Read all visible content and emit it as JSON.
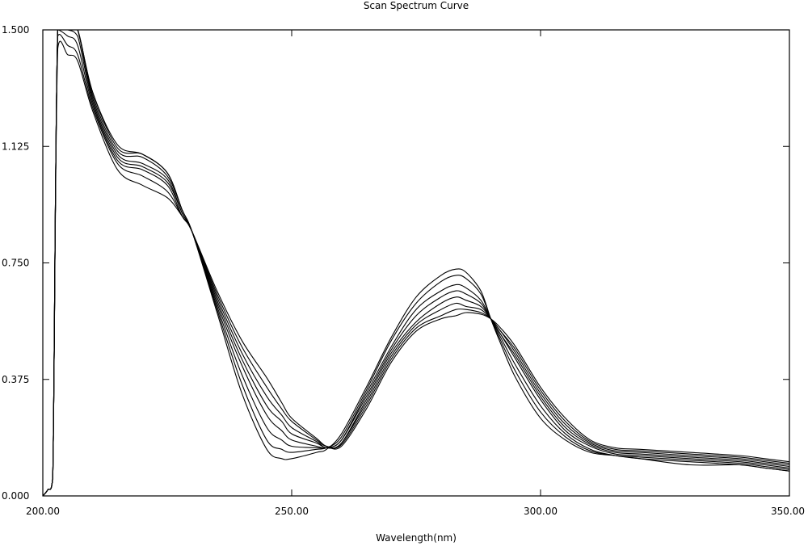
{
  "chart_data": {
    "type": "line",
    "title": "Scan Spectrum Curve",
    "xlabel": "Wavelength(nm)",
    "ylabel": "",
    "xlim": [
      200,
      350
    ],
    "ylim": [
      0,
      1.5
    ],
    "grid": false,
    "x_ticks": [
      "200.00",
      "250.00",
      "300.00",
      "350.00"
    ],
    "y_ticks": [
      "0.000",
      "0.375",
      "0.750",
      "1.125",
      "1.500"
    ],
    "x_tick_values": [
      200,
      250,
      300,
      350
    ],
    "y_tick_values": [
      0,
      0.375,
      0.75,
      1.125,
      1.5
    ],
    "x": [
      200,
      201,
      202,
      203,
      205,
      207,
      210,
      215,
      220,
      225,
      228,
      230,
      235,
      240,
      245,
      248,
      250,
      255,
      257,
      260,
      265,
      270,
      275,
      280,
      283,
      285,
      288,
      290,
      292,
      295,
      300,
      305,
      310,
      315,
      320,
      330,
      340,
      345,
      350
    ],
    "series": [
      {
        "values": [
          0.0,
          0.02,
          0.06,
          1.6,
          1.62,
          1.6,
          1.3,
          1.13,
          1.1,
          1.04,
          0.92,
          0.85,
          0.59,
          0.33,
          0.15,
          0.12,
          0.12,
          0.14,
          0.15,
          0.2,
          0.35,
          0.51,
          0.64,
          0.71,
          0.73,
          0.72,
          0.66,
          0.57,
          0.49,
          0.38,
          0.25,
          0.18,
          0.14,
          0.13,
          0.12,
          0.1,
          0.1,
          0.09,
          0.08
        ]
      },
      {
        "values": [
          0.0,
          0.02,
          0.06,
          1.6,
          1.6,
          1.56,
          1.3,
          1.12,
          1.1,
          1.04,
          0.92,
          0.85,
          0.6,
          0.36,
          0.18,
          0.15,
          0.14,
          0.15,
          0.155,
          0.19,
          0.34,
          0.5,
          0.62,
          0.69,
          0.71,
          0.7,
          0.65,
          0.57,
          0.5,
          0.4,
          0.27,
          0.19,
          0.145,
          0.13,
          0.12,
          0.11,
          0.1,
          0.09,
          0.08
        ]
      },
      {
        "values": [
          0.0,
          0.02,
          0.06,
          1.6,
          1.58,
          1.52,
          1.29,
          1.11,
          1.09,
          1.03,
          0.92,
          0.85,
          0.61,
          0.39,
          0.22,
          0.18,
          0.16,
          0.155,
          0.155,
          0.18,
          0.33,
          0.48,
          0.6,
          0.66,
          0.68,
          0.67,
          0.63,
          0.57,
          0.51,
          0.42,
          0.29,
          0.2,
          0.15,
          0.13,
          0.125,
          0.115,
          0.105,
          0.095,
          0.085
        ]
      },
      {
        "values": [
          0.0,
          0.02,
          0.06,
          1.58,
          1.56,
          1.5,
          1.28,
          1.1,
          1.07,
          1.02,
          0.91,
          0.85,
          0.62,
          0.42,
          0.26,
          0.21,
          0.18,
          0.16,
          0.155,
          0.18,
          0.32,
          0.47,
          0.58,
          0.64,
          0.66,
          0.65,
          0.62,
          0.57,
          0.52,
          0.44,
          0.31,
          0.21,
          0.16,
          0.135,
          0.13,
          0.12,
          0.11,
          0.1,
          0.09
        ]
      },
      {
        "values": [
          0.0,
          0.02,
          0.06,
          1.55,
          1.52,
          1.48,
          1.27,
          1.09,
          1.06,
          1.01,
          0.91,
          0.85,
          0.63,
          0.44,
          0.29,
          0.24,
          0.2,
          0.17,
          0.155,
          0.17,
          0.31,
          0.46,
          0.56,
          0.62,
          0.64,
          0.63,
          0.61,
          0.57,
          0.52,
          0.45,
          0.32,
          0.22,
          0.165,
          0.14,
          0.135,
          0.125,
          0.115,
          0.105,
          0.095
        ]
      },
      {
        "values": [
          0.0,
          0.02,
          0.06,
          1.52,
          1.48,
          1.45,
          1.26,
          1.08,
          1.05,
          1.0,
          0.9,
          0.85,
          0.64,
          0.46,
          0.32,
          0.26,
          0.22,
          0.175,
          0.155,
          0.17,
          0.3,
          0.45,
          0.55,
          0.6,
          0.62,
          0.61,
          0.6,
          0.57,
          0.53,
          0.46,
          0.33,
          0.23,
          0.17,
          0.145,
          0.14,
          0.13,
          0.12,
          0.11,
          0.1
        ]
      },
      {
        "values": [
          0.0,
          0.02,
          0.06,
          1.48,
          1.45,
          1.42,
          1.25,
          1.07,
          1.03,
          0.98,
          0.9,
          0.85,
          0.65,
          0.48,
          0.35,
          0.28,
          0.24,
          0.18,
          0.16,
          0.165,
          0.29,
          0.44,
          0.54,
          0.58,
          0.6,
          0.6,
          0.59,
          0.57,
          0.53,
          0.47,
          0.34,
          0.24,
          0.175,
          0.15,
          0.145,
          0.135,
          0.125,
          0.115,
          0.105
        ]
      },
      {
        "values": [
          0.0,
          0.02,
          0.06,
          1.44,
          1.42,
          1.4,
          1.24,
          1.05,
          1.0,
          0.96,
          0.9,
          0.85,
          0.66,
          0.5,
          0.38,
          0.3,
          0.25,
          0.185,
          0.16,
          0.16,
          0.28,
          0.43,
          0.53,
          0.57,
          0.58,
          0.59,
          0.585,
          0.57,
          0.54,
          0.48,
          0.35,
          0.25,
          0.18,
          0.155,
          0.15,
          0.14,
          0.13,
          0.12,
          0.11
        ]
      }
    ]
  }
}
